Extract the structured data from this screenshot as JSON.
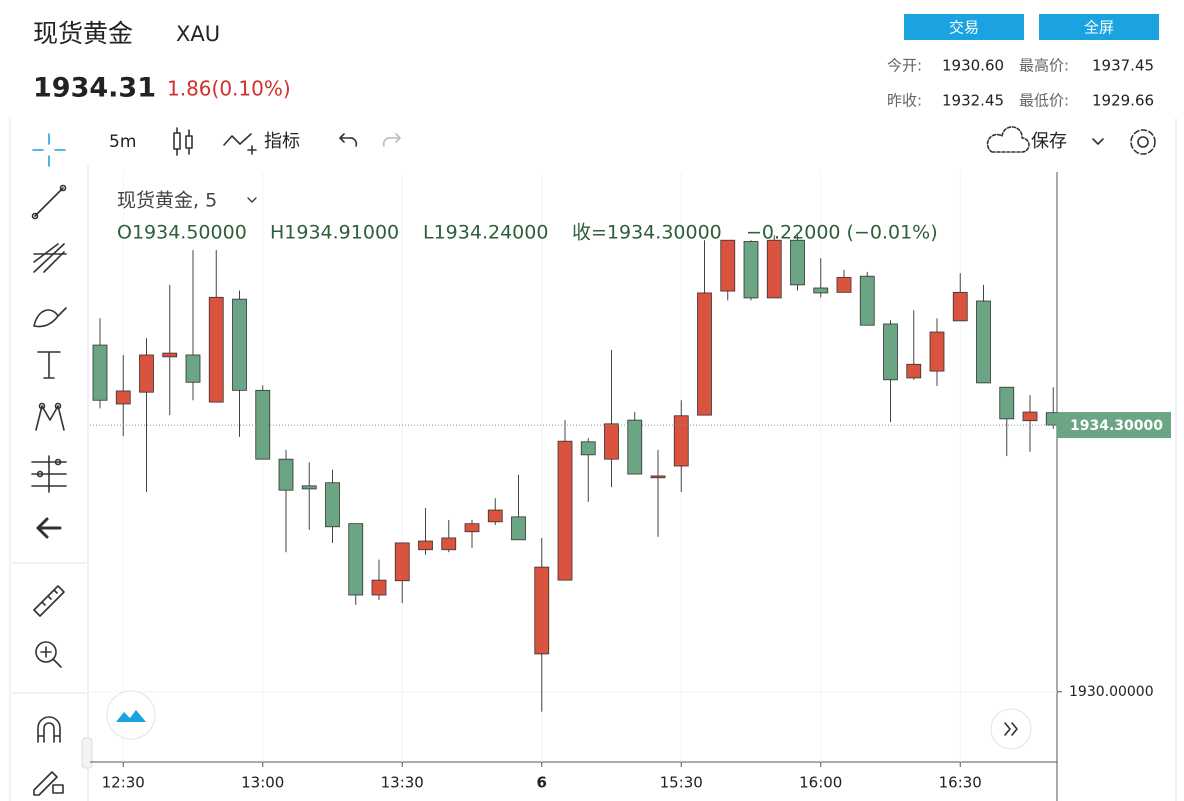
{
  "header": {
    "title": "现货黄金",
    "symbol": "XAU",
    "price": "1934.31",
    "change": "1.86(0.10%)",
    "buttons": [
      "交易",
      "全屏"
    ],
    "stats": [
      {
        "label": "今开:",
        "value": "1930.60"
      },
      {
        "label": "最高价:",
        "value": "1937.45"
      },
      {
        "label": "昨收:",
        "value": "1932.45"
      },
      {
        "label": "最低价:",
        "value": "1929.66"
      }
    ]
  },
  "toolbar": {
    "interval": "5m",
    "indicators": "指标",
    "save": "保存"
  },
  "chart_data": {
    "type": "candlestick",
    "legend_title": "现货黄金, 5",
    "ohlc_labels": [
      "O1934.50000",
      "H1934.91000",
      "L1934.24000",
      "收=1934.30000",
      "−0.22000 (−0.01%)"
    ],
    "categories": [
      null,
      "12:30",
      null,
      null,
      null,
      null,
      null,
      "13:00",
      null,
      null,
      null,
      null,
      null,
      "13:30",
      null,
      null,
      null,
      null,
      null,
      "6",
      null,
      null,
      null,
      null,
      null,
      "15:30",
      null,
      null,
      null,
      null,
      null,
      "16:00",
      null,
      null,
      null,
      null,
      null,
      "16:30",
      null,
      null,
      null,
      null
    ],
    "open": [
      1935.59,
      1934.64,
      1934.83,
      1935.4,
      1935.43,
      1934.67,
      1936.33,
      1934.86,
      1933.75,
      1933.32,
      1933.37,
      1932.71,
      1931.56,
      1931.79,
      1932.29,
      1932.29,
      1932.58,
      1932.74,
      1932.82,
      1930.61,
      1931.8,
      1934.03,
      1933.75,
      1934.38,
      1933.45,
      1933.64,
      1934.46,
      1936.46,
      1937.26,
      1936.35,
      1937.28,
      1936.51,
      1936.44,
      1936.7,
      1935.93,
      1935.06,
      1935.17,
      1935.98,
      1936.3,
      1934.91,
      1934.37,
      1934.5
    ],
    "high": [
      1936.02,
      1935.43,
      1935.7,
      1936.56,
      1937.12,
      1937.12,
      1936.47,
      1934.94,
      1933.9,
      1933.7,
      1933.58,
      1932.71,
      1932.13,
      1932.4,
      1932.96,
      1932.77,
      1932.77,
      1933.12,
      1933.5,
      1932.48,
      1934.38,
      1934.09,
      1935.51,
      1934.51,
      1933.9,
      1934.7,
      1937.28,
      1937.28,
      1937.28,
      1937.36,
      1937.36,
      1936.99,
      1936.8,
      1936.77,
      1935.99,
      1936.15,
      1936.02,
      1936.75,
      1936.56,
      1934.91,
      1934.78,
      1934.91
    ],
    "low": [
      1934.57,
      1934.12,
      1933.22,
      1934.46,
      1934.7,
      1934.67,
      1934.11,
      1933.75,
      1932.25,
      1932.61,
      1932.4,
      1931.4,
      1931.48,
      1931.43,
      1932.21,
      1932.25,
      1932.32,
      1932.69,
      1932.45,
      1929.68,
      1931.8,
      1933.06,
      1933.3,
      1933.51,
      1932.5,
      1933.22,
      1934.46,
      1936.31,
      1936.31,
      1936.35,
      1936.47,
      1936.36,
      1936.44,
      1935.91,
      1934.35,
      1935.03,
      1934.93,
      1935.98,
      1934.98,
      1933.8,
      1933.87,
      1934.24
    ],
    "close": [
      1934.7,
      1934.85,
      1935.43,
      1935.46,
      1934.99,
      1936.36,
      1934.86,
      1933.75,
      1933.25,
      1933.27,
      1932.66,
      1931.56,
      1931.8,
      1932.4,
      1932.43,
      1932.48,
      1932.71,
      1932.93,
      1932.45,
      1932.01,
      1934.04,
      1933.82,
      1934.32,
      1933.51,
      1933.48,
      1934.45,
      1936.43,
      1937.28,
      1936.35,
      1937.28,
      1936.56,
      1936.43,
      1936.68,
      1935.91,
      1935.03,
      1935.28,
      1935.8,
      1936.44,
      1934.98,
      1934.4,
      1934.51,
      1934.3
    ],
    "up_color": "#d9533f",
    "down_color": "#6ba583",
    "ylim": [
      1928.9,
      1938.38
    ],
    "yticks": [
      {
        "value": 1930,
        "label": "1930.00000"
      }
    ],
    "last_price": {
      "value": 1934.3,
      "label": "1934.30000"
    },
    "grid": true
  }
}
